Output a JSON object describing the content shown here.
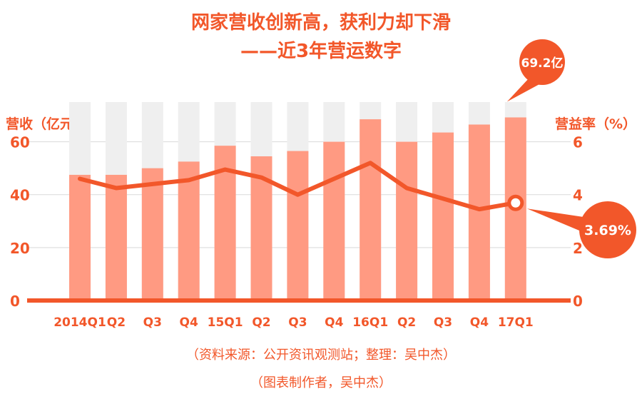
{
  "title_line1": "网家营收创新高，获利力却下滑",
  "title_line2": "——近3年营运数字",
  "left_axis_title": "营收（亿元）",
  "right_axis_title": "营益率（%）",
  "source_line1": "（资料来源：公开资讯观测站；整理：吴中杰）",
  "source_line2": "（图表制作者，吴中杰）",
  "colors": {
    "accent": "#F2572A",
    "bar": "#FF9A82",
    "bar_bg": "#EFEFEF",
    "axis_text": "#F2572A",
    "gridline": "#D9D9D9"
  },
  "chart_data": {
    "type": "bar+line",
    "categories": [
      "2014Q1",
      "Q2",
      "Q3",
      "Q4",
      "15Q1",
      "Q2",
      "Q3",
      "Q4",
      "16Q1",
      "Q2",
      "Q3",
      "Q4",
      "17Q1"
    ],
    "series": [
      {
        "name": "营收（亿元）",
        "type": "bar",
        "axis": "left",
        "values": [
          47.5,
          47.5,
          50,
          52.5,
          58.5,
          54.5,
          56.5,
          60,
          68.5,
          60,
          63.5,
          66.5,
          69.2
        ]
      },
      {
        "name": "营益率（%）",
        "type": "line",
        "axis": "right",
        "values": [
          4.6,
          4.25,
          4.4,
          4.55,
          4.95,
          4.65,
          4.0,
          4.6,
          5.2,
          4.25,
          3.85,
          3.45,
          3.69
        ]
      }
    ],
    "left_axis": {
      "ylim": [
        0,
        75
      ],
      "ticks": [
        0,
        20,
        40,
        60
      ]
    },
    "right_axis": {
      "ylim": [
        0,
        7.5
      ],
      "ticks": [
        0,
        2,
        4,
        6
      ]
    },
    "grid": true,
    "annotations": [
      {
        "text": "69.2亿",
        "category": "17Q1",
        "series": "营收（亿元）"
      },
      {
        "text": "3.69%",
        "category": "17Q1",
        "series": "营益率（%）"
      }
    ]
  }
}
